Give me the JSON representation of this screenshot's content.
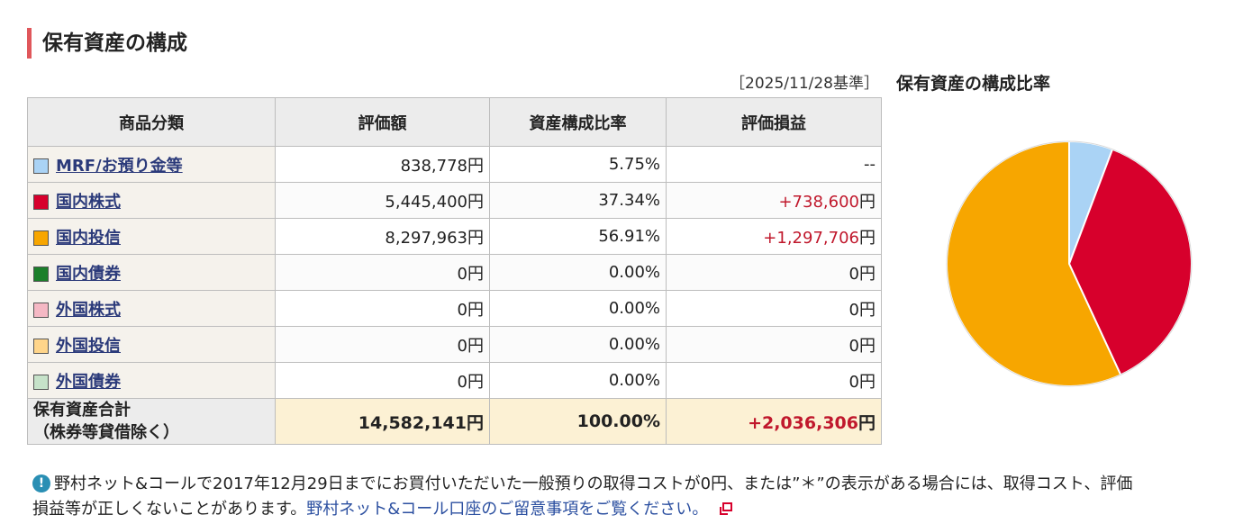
{
  "section": {
    "title": "保有資産の構成",
    "as_of": "［2025/11/28基準］",
    "chart_title": "保有資産の構成比率"
  },
  "table": {
    "headers": [
      "商品分類",
      "評価額",
      "資産構成比率",
      "評価損益"
    ],
    "rows": [
      {
        "category": "MRF/お預り金等",
        "color": "#aad3f5",
        "valuation": "838,778円",
        "ratio": "5.75%",
        "pl": "--",
        "pl_positive": false
      },
      {
        "category": "国内株式",
        "color": "#d7002c",
        "valuation": "5,445,400円",
        "ratio": "37.34%",
        "pl_value": "+738,600",
        "pl_unit": "円",
        "pl_positive": true
      },
      {
        "category": "国内投信",
        "color": "#f7a600",
        "valuation": "8,297,963円",
        "ratio": "56.91%",
        "pl_value": "+1,297,706",
        "pl_unit": "円",
        "pl_positive": true
      },
      {
        "category": "国内債券",
        "color": "#1b7f2a",
        "valuation": "0円",
        "ratio": "0.00%",
        "pl": "0円",
        "pl_positive": false
      },
      {
        "category": "外国株式",
        "color": "#f5b8c4",
        "valuation": "0円",
        "ratio": "0.00%",
        "pl": "0円",
        "pl_positive": false
      },
      {
        "category": "外国投信",
        "color": "#ffd58a",
        "valuation": "0円",
        "ratio": "0.00%",
        "pl": "0円",
        "pl_positive": false
      },
      {
        "category": "外国債券",
        "color": "#c6e2c9",
        "valuation": "0円",
        "ratio": "0.00%",
        "pl": "0円",
        "pl_positive": false
      }
    ],
    "total": {
      "label_line1": "保有資産合計",
      "label_line2": "（株券等貸借除く）",
      "valuation": "14,582,141円",
      "ratio": "100.00%",
      "pl_value": "+2,036,306",
      "pl_unit": "円"
    }
  },
  "note": {
    "icon": "info-icon",
    "text_line1": "野村ネット&コールで2017年12月29日までにお買付いただいた一般預りの取得コストが0円、または”＊”の表示がある場合には、取得コスト、評価",
    "text_line2_prefix": "損益等が正しくないことがあります。",
    "link_text": "野村ネット&コール口座のご留意事項をご覧ください。",
    "link_icon": "external-link-icon"
  },
  "chart_data": {
    "type": "pie",
    "categories": [
      "MRF/お預り金等",
      "国内株式",
      "国内投信",
      "国内債券",
      "外国株式",
      "外国投信",
      "外国債券"
    ],
    "values": [
      5.75,
      37.34,
      56.91,
      0,
      0,
      0,
      0
    ],
    "colors": [
      "#aad3f5",
      "#d7002c",
      "#f7a600",
      "#1b7f2a",
      "#f5b8c4",
      "#ffd58a",
      "#c6e2c9"
    ],
    "title": "保有資産の構成比率"
  }
}
